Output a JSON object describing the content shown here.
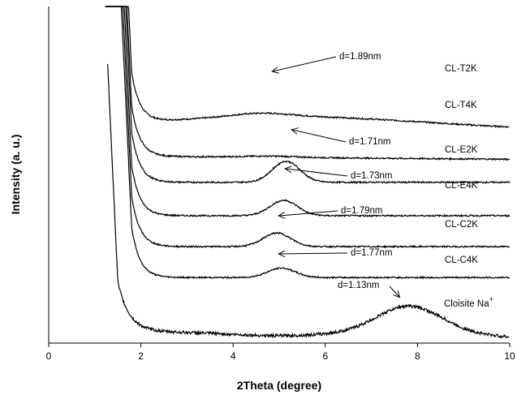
{
  "chart_data": {
    "type": "line",
    "title": "",
    "xlabel": "2Theta (degree)",
    "ylabel": "Intensity (a. u.)",
    "xlim": [
      0,
      10
    ],
    "x_ticks": [
      "0",
      "2",
      "4",
      "6",
      "8",
      "10"
    ],
    "y_ticks_labeled": false,
    "grid": false,
    "legend": "none",
    "series": [
      {
        "name": "CL-T2K",
        "baseline": 8.95,
        "peak": {
          "x": 4.6,
          "height": 0.15,
          "width": 0.9
        },
        "annotation": "d=1.89nm"
      },
      {
        "name": "CL-T4K",
        "baseline": 7.55,
        "peak": {
          "x": 4.8,
          "height": 0.05,
          "width": 0.8
        },
        "annotation": ""
      },
      {
        "name": "CL-E2K",
        "baseline": 6.5,
        "peak": {
          "x": 5.15,
          "height": 0.85,
          "width": 0.42
        },
        "annotation": "d=1.71nm"
      },
      {
        "name": "CL-E4K",
        "baseline": 5.15,
        "peak": {
          "x": 5.1,
          "height": 0.62,
          "width": 0.42
        },
        "annotation": "d=1.73nm"
      },
      {
        "name": "CL-C2K",
        "baseline": 3.9,
        "peak": {
          "x": 4.95,
          "height": 0.55,
          "width": 0.42
        },
        "annotation": "d=1.79nm"
      },
      {
        "name": "CL-C4K",
        "baseline": 2.65,
        "peak": {
          "x": 5.05,
          "height": 0.38,
          "width": 0.42
        },
        "annotation": "d=1.77nm"
      },
      {
        "name": "Cloisite Na+",
        "baseline": 0.45,
        "peak": {
          "x": 7.8,
          "height": 1.05,
          "width": 0.95
        },
        "annotation": "d=1.13nm"
      }
    ]
  },
  "labels": {
    "cloisite_base": "Cloisite Na",
    "cloisite_sup": "+"
  }
}
